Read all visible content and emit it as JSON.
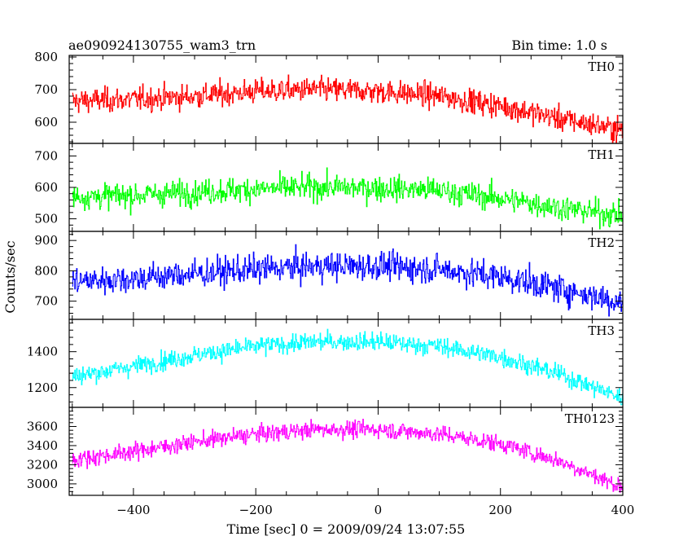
{
  "header": {
    "left_title": "ae090924130755_wam3_trn",
    "right_title": "Bin time: 1.0 s"
  },
  "axes": {
    "xlabel": "Time [sec] 0 = 2009/09/24 13:07:55",
    "ylabel": "Counts/sec"
  },
  "chart_data": {
    "type": "line",
    "title": "ae090924130755_wam3_trn",
    "subtitle": "Bin time: 1.0 s",
    "xlabel": "Time [sec] 0 = 2009/09/24 13:07:55",
    "ylabel": "Counts/sec",
    "xlim": [
      -505,
      400
    ],
    "xticks": [
      -400,
      -200,
      0,
      200,
      400
    ],
    "xtick_labels": [
      "−400",
      "−200",
      "0",
      "200",
      "400"
    ],
    "x_start": -500,
    "x_end": 399,
    "x_step": 1,
    "grid": false,
    "legend": "none",
    "panels": [
      {
        "name": "TH0",
        "color": "#ff0000",
        "ylim": [
          535,
          805
        ],
        "yticks": [
          600,
          700,
          800
        ],
        "trend": [
          [
            -500,
            665
          ],
          [
            -400,
            670
          ],
          [
            -300,
            680
          ],
          [
            -200,
            695
          ],
          [
            -100,
            700
          ],
          [
            0,
            695
          ],
          [
            100,
            680
          ],
          [
            200,
            650
          ],
          [
            300,
            610
          ],
          [
            400,
            575
          ]
        ],
        "noise_sd": 26
      },
      {
        "name": "TH1",
        "color": "#00ff00",
        "ylim": [
          460,
          740
        ],
        "yticks": [
          500,
          600,
          700
        ],
        "trend": [
          [
            -500,
            570
          ],
          [
            -400,
            575
          ],
          [
            -300,
            585
          ],
          [
            -200,
            595
          ],
          [
            -100,
            600
          ],
          [
            0,
            598
          ],
          [
            100,
            590
          ],
          [
            200,
            565
          ],
          [
            300,
            535
          ],
          [
            400,
            510
          ]
        ],
        "noise_sd": 28
      },
      {
        "name": "TH2",
        "color": "#0000ff",
        "ylim": [
          640,
          930
        ],
        "yticks": [
          700,
          800,
          900
        ],
        "trend": [
          [
            -500,
            765
          ],
          [
            -400,
            775
          ],
          [
            -300,
            790
          ],
          [
            -200,
            805
          ],
          [
            -100,
            815
          ],
          [
            0,
            815
          ],
          [
            100,
            805
          ],
          [
            200,
            780
          ],
          [
            300,
            740
          ],
          [
            400,
            695
          ]
        ],
        "noise_sd": 33
      },
      {
        "name": "TH3",
        "color": "#00ffff",
        "ylim": [
          1090,
          1580
        ],
        "yticks": [
          1200,
          1400
        ],
        "trend": [
          [
            -500,
            1260
          ],
          [
            -400,
            1320
          ],
          [
            -300,
            1380
          ],
          [
            -200,
            1430
          ],
          [
            -100,
            1455
          ],
          [
            0,
            1455
          ],
          [
            100,
            1430
          ],
          [
            200,
            1370
          ],
          [
            300,
            1270
          ],
          [
            400,
            1140
          ]
        ],
        "noise_sd": 36
      },
      {
        "name": "TH0123",
        "color": "#ff00ff",
        "ylim": [
          2880,
          3800
        ],
        "yticks": [
          3000,
          3200,
          3400,
          3600
        ],
        "trend": [
          [
            -500,
            3250
          ],
          [
            -400,
            3340
          ],
          [
            -300,
            3440
          ],
          [
            -200,
            3520
          ],
          [
            -100,
            3570
          ],
          [
            0,
            3570
          ],
          [
            100,
            3520
          ],
          [
            200,
            3420
          ],
          [
            300,
            3230
          ],
          [
            400,
            2960
          ]
        ],
        "noise_sd": 62
      }
    ]
  }
}
